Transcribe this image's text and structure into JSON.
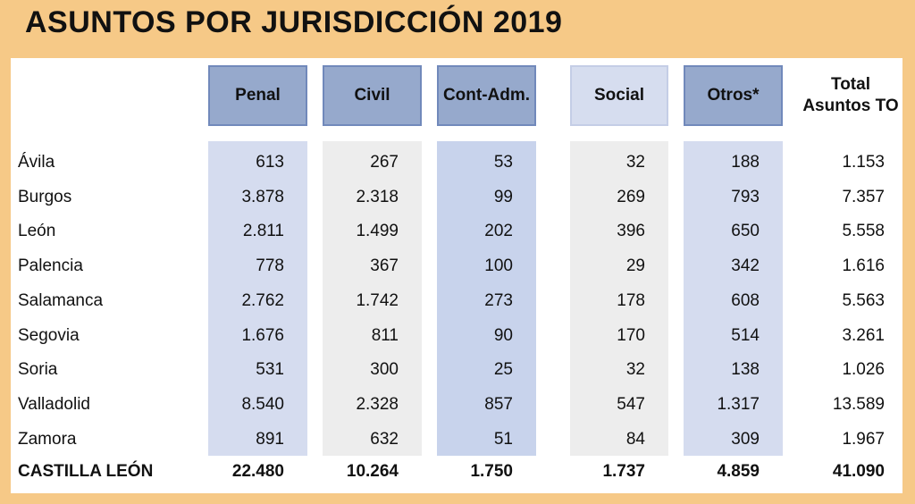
{
  "title": "ASUNTOS POR JURISDICCIÓN 2019",
  "chart_data": {
    "type": "table",
    "title": "ASUNTOS POR JURISDICCIÓN 2019",
    "columns": [
      "Penal",
      "Civil",
      "Cont-Adm.",
      "Social",
      "Otros*",
      "Total Asuntos TO"
    ],
    "total_header": {
      "line1": "Total",
      "line2": "Asuntos TO"
    },
    "rows": [
      {
        "label": "Ávila",
        "values": [
          "613",
          "267",
          "53",
          "32",
          "188",
          "1.153"
        ]
      },
      {
        "label": "Burgos",
        "values": [
          "3.878",
          "2.318",
          "99",
          "269",
          "793",
          "7.357"
        ]
      },
      {
        "label": "León",
        "values": [
          "2.811",
          "1.499",
          "202",
          "396",
          "650",
          "5.558"
        ]
      },
      {
        "label": "Palencia",
        "values": [
          "778",
          "367",
          "100",
          "29",
          "342",
          "1.616"
        ]
      },
      {
        "label": "Salamanca",
        "values": [
          "2.762",
          "1.742",
          "273",
          "178",
          "608",
          "5.563"
        ]
      },
      {
        "label": "Segovia",
        "values": [
          "1.676",
          "811",
          "90",
          "170",
          "514",
          "3.261"
        ]
      },
      {
        "label": "Soria",
        "values": [
          "531",
          "300",
          "25",
          "32",
          "138",
          "1.026"
        ]
      },
      {
        "label": "Valladolid",
        "values": [
          "8.540",
          "2.328",
          "857",
          "547",
          "1.317",
          "13.589"
        ]
      },
      {
        "label": "Zamora",
        "values": [
          "891",
          "632",
          "51",
          "84",
          "309",
          "1.967"
        ]
      }
    ],
    "total_row": {
      "label": "CASTILLA LEÓN",
      "values": [
        "22.480",
        "10.264",
        "1.750",
        "1.737",
        "4.859",
        "41.090"
      ]
    }
  },
  "colors": {
    "background": "#f6c987",
    "header_dark": "#96a9cc",
    "header_light": "#d6ddef",
    "column_blue": "#d5dcef",
    "column_blue_strong": "#c8d3ec",
    "column_grey": "#ededed"
  }
}
